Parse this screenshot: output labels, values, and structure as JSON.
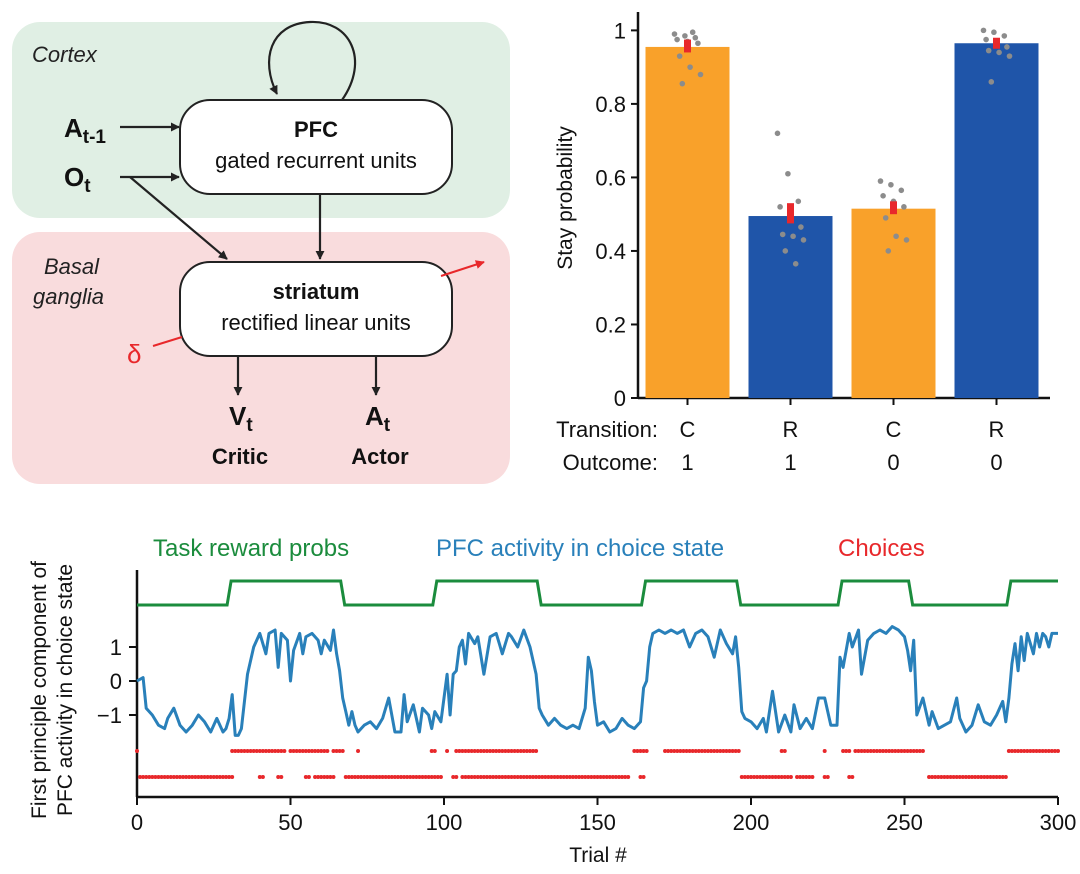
{
  "diagram": {
    "regions": [
      {
        "label": "Cortex",
        "color": "#e0efe4"
      },
      {
        "label_lines": [
          "Basal",
          "ganglia"
        ],
        "color": "#f9dcdd"
      }
    ],
    "pfc": {
      "title": "PFC",
      "subtitle": "gated recurrent units"
    },
    "striatum": {
      "title": "striatum",
      "subtitle": "rectified linear units"
    },
    "inputs": [
      {
        "base": "A",
        "sub": "t-1"
      },
      {
        "base": "O",
        "sub": "t"
      }
    ],
    "outputs": [
      {
        "base": "V",
        "sub": "t",
        "role": "Critic"
      },
      {
        "base": "A",
        "sub": "t",
        "role": "Actor"
      }
    ],
    "delta": "δ",
    "arrow_color": "#222222",
    "delta_color": "#e8282b"
  },
  "bar_chart": {
    "chart_data": {
      "type": "bar",
      "ylabel": "Stay probability",
      "ylim": [
        0,
        1.05
      ],
      "yticks": [
        0,
        0.2,
        0.4,
        0.6,
        0.8,
        1
      ],
      "ytick_labels": [
        "0",
        "0.2",
        "0.4",
        "0.6",
        "0.8",
        "1"
      ],
      "row_labels": [
        "Transition:",
        "Outcome:"
      ],
      "categories": [
        {
          "transition": "C",
          "outcome": "1",
          "value": 0.955,
          "err": [
            0.94,
            0.975
          ],
          "color": "#f9a12a",
          "points": [
            0.99,
            0.985,
            0.98,
            0.975,
            0.97,
            0.965,
            0.93,
            0.9,
            0.88,
            0.855,
            0.995
          ]
        },
        {
          "transition": "R",
          "outcome": "1",
          "value": 0.495,
          "err": [
            0.475,
            0.53
          ],
          "color": "#1f55a9",
          "points": [
            0.72,
            0.61,
            0.535,
            0.52,
            0.49,
            0.465,
            0.445,
            0.44,
            0.43,
            0.4,
            0.365
          ]
        },
        {
          "transition": "C",
          "outcome": "0",
          "value": 0.515,
          "err": [
            0.5,
            0.535
          ],
          "color": "#f9a12a",
          "points": [
            0.59,
            0.58,
            0.565,
            0.55,
            0.535,
            0.52,
            0.49,
            0.44,
            0.43,
            0.4
          ]
        },
        {
          "transition": "R",
          "outcome": "0",
          "value": 0.965,
          "err": [
            0.95,
            0.98
          ],
          "color": "#1f55a9",
          "points": [
            1.0,
            0.995,
            0.985,
            0.975,
            0.965,
            0.955,
            0.945,
            0.94,
            0.93,
            0.86
          ]
        }
      ],
      "err_color": "#e8282b",
      "point_color": "#8c8c8c"
    }
  },
  "time_chart": {
    "chart_data": {
      "type": "line",
      "xlabel": "Trial #",
      "ylabel_lines": [
        "First principle component of",
        "PFC activity in choice state"
      ],
      "xlim": [
        0,
        300
      ],
      "xticks": [
        0,
        50,
        100,
        150,
        200,
        250,
        300
      ],
      "xtick_labels": [
        "0",
        "50",
        "100",
        "150",
        "200",
        "250",
        "300"
      ],
      "yticks": [
        1,
        0,
        -1
      ],
      "ytick_labels": [
        "1",
        "0",
        "−1"
      ],
      "legend": [
        {
          "label": "Task reward probs",
          "color": "#1b8c3d"
        },
        {
          "label": "PFC activity in choice state",
          "color": "#2980ba"
        },
        {
          "label": "Choices",
          "color": "#e8282b"
        }
      ],
      "reward_switch_trials": [
        30,
        67,
        97,
        131,
        165,
        196,
        229,
        252,
        284
      ],
      "reward_initial_level": "low",
      "pfc_activity": [
        [
          0,
          0.0
        ],
        [
          2,
          0.1
        ],
        [
          3,
          -0.8
        ],
        [
          5,
          -1.0
        ],
        [
          7,
          -1.3
        ],
        [
          9,
          -1.4
        ],
        [
          10,
          -1.1
        ],
        [
          12,
          -0.8
        ],
        [
          14,
          -1.3
        ],
        [
          16,
          -1.5
        ],
        [
          18,
          -1.3
        ],
        [
          20,
          -1.0
        ],
        [
          22,
          -1.2
        ],
        [
          24,
          -1.5
        ],
        [
          26,
          -1.1
        ],
        [
          28,
          -1.5
        ],
        [
          29,
          -1.4
        ],
        [
          30,
          -1.1
        ],
        [
          31,
          -0.4
        ],
        [
          32,
          -1.6
        ],
        [
          33,
          -1.6
        ],
        [
          34,
          -1.4
        ],
        [
          36,
          0.2
        ],
        [
          38,
          1.0
        ],
        [
          40,
          1.4
        ],
        [
          42,
          0.8
        ],
        [
          43,
          1.4
        ],
        [
          45,
          1.5
        ],
        [
          46,
          0.4
        ],
        [
          47,
          1.4
        ],
        [
          49,
          1.2
        ],
        [
          50,
          0.0
        ],
        [
          51,
          0.9
        ],
        [
          53,
          1.4
        ],
        [
          54,
          0.8
        ],
        [
          55,
          1.3
        ],
        [
          57,
          1.4
        ],
        [
          59,
          1.2
        ],
        [
          60,
          0.8
        ],
        [
          61,
          1.2
        ],
        [
          63,
          0.9
        ],
        [
          64,
          1.5
        ],
        [
          65,
          0.8
        ],
        [
          66,
          0.3
        ],
        [
          67,
          -0.5
        ],
        [
          68,
          -0.9
        ],
        [
          69,
          -1.3
        ],
        [
          70,
          -0.9
        ],
        [
          71,
          -1.3
        ],
        [
          72,
          -1.5
        ],
        [
          74,
          -1.3
        ],
        [
          76,
          -1.2
        ],
        [
          78,
          -1.4
        ],
        [
          80,
          -1.1
        ],
        [
          82,
          -0.5
        ],
        [
          84,
          -1.5
        ],
        [
          86,
          -1.5
        ],
        [
          87,
          -0.4
        ],
        [
          88,
          -1.2
        ],
        [
          90,
          -0.7
        ],
        [
          92,
          -1.5
        ],
        [
          93,
          -0.8
        ],
        [
          95,
          -1.0
        ],
        [
          96,
          -1.4
        ],
        [
          97,
          -0.9
        ],
        [
          99,
          -1.2
        ],
        [
          100,
          -0.5
        ],
        [
          101,
          0.2
        ],
        [
          102,
          -1.0
        ],
        [
          103,
          0.2
        ],
        [
          104,
          0.3
        ],
        [
          105,
          1.0
        ],
        [
          106,
          1.2
        ],
        [
          107,
          0.5
        ],
        [
          108,
          1.4
        ],
        [
          110,
          1.1
        ],
        [
          111,
          1.3
        ],
        [
          113,
          0.2
        ],
        [
          115,
          1.3
        ],
        [
          117,
          1.4
        ],
        [
          118,
          1.1
        ],
        [
          119,
          0.8
        ],
        [
          121,
          1.4
        ],
        [
          122,
          1.3
        ],
        [
          124,
          1.0
        ],
        [
          126,
          1.5
        ],
        [
          128,
          1.0
        ],
        [
          130,
          0.2
        ],
        [
          131,
          -0.8
        ],
        [
          132,
          -1.0
        ],
        [
          134,
          -1.3
        ],
        [
          136,
          -1.1
        ],
        [
          138,
          -1.3
        ],
        [
          140,
          -1.4
        ],
        [
          142,
          -1.3
        ],
        [
          144,
          -1.4
        ],
        [
          146,
          -0.8
        ],
        [
          147,
          0.7
        ],
        [
          148,
          0.3
        ],
        [
          149,
          -0.6
        ],
        [
          150,
          -1.3
        ],
        [
          152,
          -1.2
        ],
        [
          154,
          -1.5
        ],
        [
          156,
          -1.4
        ],
        [
          158,
          -1.1
        ],
        [
          160,
          -1.3
        ],
        [
          162,
          -1.4
        ],
        [
          164,
          -1.2
        ],
        [
          165,
          -0.2
        ],
        [
          166,
          0.0
        ],
        [
          167,
          1.0
        ],
        [
          168,
          1.4
        ],
        [
          170,
          1.5
        ],
        [
          172,
          1.4
        ],
        [
          174,
          1.5
        ],
        [
          176,
          1.4
        ],
        [
          178,
          1.5
        ],
        [
          180,
          1.0
        ],
        [
          182,
          1.4
        ],
        [
          184,
          1.5
        ],
        [
          186,
          1.3
        ],
        [
          188,
          0.7
        ],
        [
          190,
          1.5
        ],
        [
          192,
          1.1
        ],
        [
          194,
          0.8
        ],
        [
          195,
          1.3
        ],
        [
          196,
          0.4
        ],
        [
          197,
          -0.9
        ],
        [
          198,
          -1.1
        ],
        [
          200,
          -1.2
        ],
        [
          202,
          -1.4
        ],
        [
          204,
          -1.1
        ],
        [
          205,
          -1.5
        ],
        [
          207,
          -0.3
        ],
        [
          209,
          -1.5
        ],
        [
          211,
          -1.0
        ],
        [
          213,
          -1.5
        ],
        [
          214,
          -0.7
        ],
        [
          216,
          -1.4
        ],
        [
          218,
          -1.1
        ],
        [
          220,
          -1.4
        ],
        [
          222,
          -0.5
        ],
        [
          224,
          -0.5
        ],
        [
          226,
          -1.3
        ],
        [
          228,
          -1.3
        ],
        [
          229,
          0.7
        ],
        [
          230,
          0.4
        ],
        [
          232,
          1.4
        ],
        [
          233,
          1.0
        ],
        [
          235,
          1.5
        ],
        [
          236,
          0.2
        ],
        [
          238,
          1.2
        ],
        [
          240,
          1.4
        ],
        [
          242,
          1.5
        ],
        [
          244,
          1.4
        ],
        [
          246,
          1.6
        ],
        [
          248,
          1.5
        ],
        [
          250,
          1.3
        ],
        [
          251,
          0.9
        ],
        [
          252,
          0.3
        ],
        [
          253,
          1.2
        ],
        [
          254,
          -1.0
        ],
        [
          256,
          -0.5
        ],
        [
          258,
          -1.3
        ],
        [
          259,
          -0.9
        ],
        [
          261,
          -1.4
        ],
        [
          263,
          -1.3
        ],
        [
          265,
          -1.2
        ],
        [
          267,
          -0.5
        ],
        [
          268,
          -1.1
        ],
        [
          270,
          -1.5
        ],
        [
          272,
          -1.3
        ],
        [
          274,
          -0.7
        ],
        [
          276,
          -1.2
        ],
        [
          278,
          -1.3
        ],
        [
          280,
          -1.0
        ],
        [
          282,
          -0.6
        ],
        [
          283,
          -1.2
        ],
        [
          284,
          -0.5
        ],
        [
          285,
          0.5
        ],
        [
          286,
          1.1
        ],
        [
          287,
          0.3
        ],
        [
          288,
          1.3
        ],
        [
          289,
          0.6
        ],
        [
          290,
          1.4
        ],
        [
          292,
          0.8
        ],
        [
          293,
          1.4
        ],
        [
          294,
          1.0
        ],
        [
          295,
          1.4
        ],
        [
          296,
          1.3
        ],
        [
          297,
          1.0
        ],
        [
          298,
          1.4
        ],
        [
          300,
          1.4
        ]
      ],
      "choices_upper_ranges": [
        [
          0,
          0
        ],
        [
          31,
          48
        ],
        [
          50,
          62
        ],
        [
          64,
          67
        ],
        [
          72,
          72
        ],
        [
          96,
          97
        ],
        [
          101,
          101
        ],
        [
          104,
          130
        ],
        [
          162,
          166
        ],
        [
          172,
          196
        ],
        [
          210,
          211
        ],
        [
          224,
          224
        ],
        [
          230,
          232
        ],
        [
          234,
          256
        ],
        [
          284,
          300
        ]
      ],
      "choices_lower_ranges": [
        [
          1,
          31
        ],
        [
          40,
          41
        ],
        [
          46,
          47
        ],
        [
          55,
          56
        ],
        [
          58,
          59
        ],
        [
          60,
          61
        ],
        [
          62,
          64
        ],
        [
          68,
          99
        ],
        [
          103,
          104
        ],
        [
          106,
          160
        ],
        [
          164,
          165
        ],
        [
          197,
          213
        ],
        [
          215,
          220
        ],
        [
          224,
          225
        ],
        [
          232,
          233
        ],
        [
          258,
          283
        ]
      ]
    }
  }
}
